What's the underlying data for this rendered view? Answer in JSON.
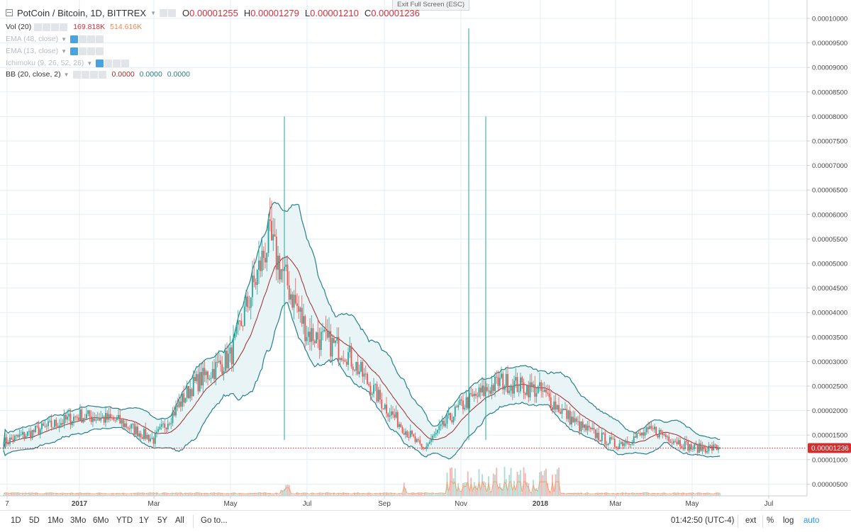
{
  "legend": {
    "symbol": "PotCoin / Bitcoin, 1D, BITTREX",
    "ohlc": {
      "o_label": "O",
      "o": "0.00001255",
      "h_label": "H",
      "h": "0.00001279",
      "l_label": "L",
      "l": "0.00001210",
      "c_label": "C",
      "c": "0.00001236"
    },
    "volume": {
      "name": "Vol (20)",
      "v1": "169.818K",
      "v2": "514.616K"
    },
    "ema48": "EMA (48, close)",
    "ema13": "EMA (13, close)",
    "ichimoku": "Ichimoku (9, 26, 52, 26)",
    "bb": {
      "name": "BB (20, close, 2)",
      "v1": "0.0000",
      "v2": "0.0000",
      "v3": "0.0000"
    }
  },
  "exit_fullscreen": "Exit Full Screen (ESC)",
  "price_tag": "0.00001236",
  "colors": {
    "up": "#26a69a",
    "down": "#ef5350",
    "bb_band": "#26808a",
    "bb_basis": "#9c2a2a",
    "bb_fill": "#e8f4f5",
    "grid": "#e3eef5",
    "last_price": "#d32f2f",
    "vol_ma": "#f5a06b"
  },
  "bottom_bar": {
    "ranges": [
      "1D",
      "5D",
      "1Mo",
      "3Mo",
      "6Mo",
      "YTD",
      "1Y",
      "5Y",
      "All"
    ],
    "goto": "Go to...",
    "clock": "01:42:50 (UTC-4)",
    "ext": "ext",
    "pct": "%",
    "log": "log",
    "auto": "auto"
  },
  "chart_data": {
    "type": "candlestick",
    "title": "PotCoin / Bitcoin, 1D, BITTREX",
    "ylim": [
      3e-06,
      0.0001
    ],
    "y_ticks": [
      "0.00000500",
      "0.00001000",
      "0.00001500",
      "0.00002000",
      "0.00002500",
      "0.00003000",
      "0.00003500",
      "0.00004000",
      "0.00004500",
      "0.00005000",
      "0.00005500",
      "0.00006000",
      "0.00006500",
      "0.00007000",
      "0.00007500",
      "0.00008000",
      "0.00008500",
      "0.00009000",
      "0.00009500",
      "0.00010000"
    ],
    "x_ticks": [
      "7",
      "2017",
      "Mar",
      "May",
      "Jul",
      "Sep",
      "Nov",
      "2018",
      "Mar",
      "May",
      "Jul"
    ],
    "last_price": 1.236e-05,
    "price_series_approx": [
      {
        "date": "2016-12",
        "close": 1.35e-05
      },
      {
        "date": "2017-01",
        "close": 1.9e-05
      },
      {
        "date": "2017-02",
        "close": 1.8e-05
      },
      {
        "date": "2017-03",
        "close": 1.4e-05
      },
      {
        "date": "2017-04",
        "close": 2.5e-05
      },
      {
        "date": "2017-05",
        "close": 3.1e-05
      },
      {
        "date": "2017-06",
        "close": 5.5e-05
      },
      {
        "date": "2017-07",
        "close": 3.6e-05
      },
      {
        "date": "2017-08",
        "close": 3.2e-05
      },
      {
        "date": "2017-09",
        "close": 2.1e-05
      },
      {
        "date": "2017-10",
        "close": 1.2e-05
      },
      {
        "date": "2017-11",
        "close": 2.1e-05
      },
      {
        "date": "2017-12",
        "close": 2.6e-05
      },
      {
        "date": "2018-01",
        "close": 2.4e-05
      },
      {
        "date": "2018-02",
        "close": 1.7e-05
      },
      {
        "date": "2018-03",
        "close": 1.3e-05
      },
      {
        "date": "2018-04",
        "close": 1.6e-05
      },
      {
        "date": "2018-05",
        "close": 1.236e-05
      }
    ],
    "spikes": [
      {
        "date": "2017-06",
        "high": 8e-05
      },
      {
        "date": "2017-11",
        "high": 9.8e-05
      },
      {
        "date": "2017-11",
        "high": 8e-05
      }
    ]
  }
}
